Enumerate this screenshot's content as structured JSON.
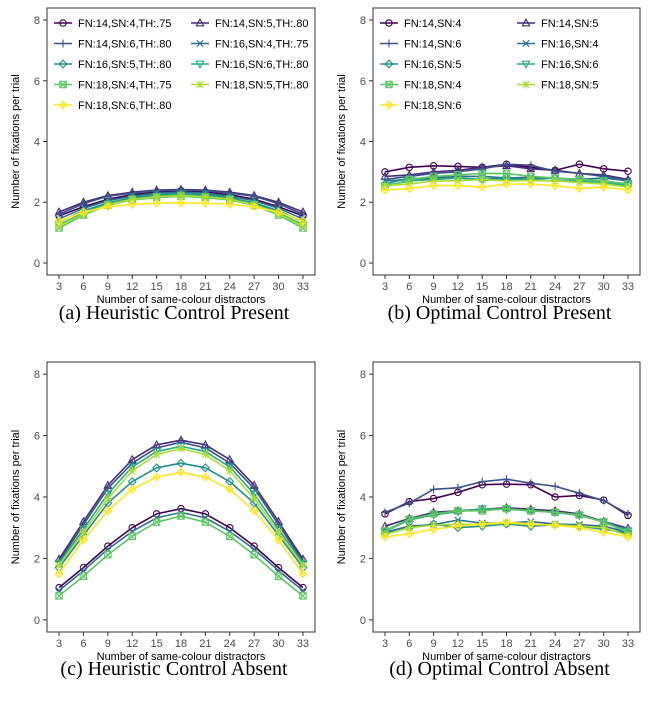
{
  "chart_data": [
    {
      "type": "line",
      "title": "(a) Heuristic Control Present",
      "xlabel": "Number of same-colour distractors",
      "ylabel": "Number of fixations per trial",
      "x": [
        3,
        6,
        9,
        12,
        15,
        18,
        21,
        24,
        27,
        30,
        33
      ],
      "xlim": [
        3,
        33
      ],
      "ylim": [
        0,
        8
      ],
      "yticks": [
        0,
        2,
        4,
        6,
        8
      ],
      "grid": false,
      "legend": "top-left",
      "series": [
        {
          "name": "FN:14,SN:4,TH:.75",
          "color": "#440154",
          "marker": "circle",
          "values": [
            1.55,
            1.85,
            2.1,
            2.25,
            2.33,
            2.38,
            2.33,
            2.25,
            2.1,
            1.85,
            1.55
          ]
        },
        {
          "name": "FN:14,SN:5,TH:.80",
          "color": "#472d7b",
          "marker": "triangle",
          "values": [
            1.68,
            2.0,
            2.22,
            2.33,
            2.4,
            2.42,
            2.4,
            2.33,
            2.22,
            2.0,
            1.68
          ]
        },
        {
          "name": "FN:14,SN:6,TH:.80",
          "color": "#3b528b",
          "marker": "plus",
          "values": [
            1.6,
            1.95,
            2.2,
            2.3,
            2.38,
            2.4,
            2.38,
            2.3,
            2.2,
            1.95,
            1.6
          ]
        },
        {
          "name": "FN:16,SN:4,TH:.75",
          "color": "#2c728e",
          "marker": "cross",
          "values": [
            1.45,
            1.8,
            2.05,
            2.2,
            2.3,
            2.33,
            2.3,
            2.2,
            2.05,
            1.8,
            1.45
          ]
        },
        {
          "name": "FN:16,SN:5,TH:.80",
          "color": "#21908d",
          "marker": "diamond",
          "values": [
            1.35,
            1.72,
            1.98,
            2.15,
            2.25,
            2.28,
            2.25,
            2.15,
            1.98,
            1.72,
            1.35
          ]
        },
        {
          "name": "FN:16,SN:6,TH:.80",
          "color": "#27ad81",
          "marker": "triangle-down",
          "values": [
            1.25,
            1.65,
            1.95,
            2.12,
            2.2,
            2.25,
            2.2,
            2.12,
            1.95,
            1.65,
            1.25
          ]
        },
        {
          "name": "FN:18,SN:4,TH:.75",
          "color": "#5dc863",
          "marker": "square-cross",
          "values": [
            1.15,
            1.58,
            1.9,
            2.08,
            2.15,
            2.2,
            2.15,
            2.08,
            1.9,
            1.58,
            1.15
          ]
        },
        {
          "name": "FN:18,SN:5,TH:.80",
          "color": "#aadc32",
          "marker": "star",
          "values": [
            1.22,
            1.62,
            1.92,
            2.1,
            2.18,
            2.22,
            2.18,
            2.1,
            1.92,
            1.62,
            1.22
          ]
        },
        {
          "name": "FN:18,SN:6,TH:.80",
          "color": "#fde725",
          "marker": "diamond-plus",
          "values": [
            1.38,
            1.68,
            1.85,
            1.93,
            1.97,
            1.98,
            1.97,
            1.93,
            1.85,
            1.68,
            1.38
          ]
        }
      ]
    },
    {
      "type": "line",
      "title": "(b) Optimal Control Present",
      "xlabel": "Number of same-colour distractors",
      "ylabel": "Number of fixations per trial",
      "x": [
        3,
        6,
        9,
        12,
        15,
        18,
        21,
        24,
        27,
        30,
        33
      ],
      "xlim": [
        3,
        33
      ],
      "ylim": [
        0,
        8
      ],
      "yticks": [
        0,
        2,
        4,
        6,
        8
      ],
      "grid": false,
      "legend": "top-left",
      "series": [
        {
          "name": "FN:14,SN:4",
          "color": "#440154",
          "marker": "circle",
          "values": [
            3.0,
            3.15,
            3.2,
            3.18,
            3.15,
            3.25,
            3.15,
            3.05,
            3.25,
            3.1,
            3.02
          ]
        },
        {
          "name": "FN:14,SN:5",
          "color": "#472d7b",
          "marker": "triangle",
          "values": [
            2.85,
            2.9,
            3.0,
            3.05,
            3.15,
            3.2,
            3.1,
            3.05,
            2.95,
            2.9,
            2.75
          ]
        },
        {
          "name": "FN:14,SN:6",
          "color": "#3b528b",
          "marker": "plus",
          "values": [
            2.75,
            2.85,
            2.95,
            3.0,
            3.1,
            3.25,
            3.22,
            3.02,
            2.95,
            2.85,
            2.72
          ]
        },
        {
          "name": "FN:16,SN:4",
          "color": "#2c728e",
          "marker": "cross",
          "values": [
            2.7,
            2.75,
            2.8,
            2.85,
            2.85,
            2.8,
            2.82,
            2.78,
            2.75,
            2.8,
            2.7
          ]
        },
        {
          "name": "FN:16,SN:5",
          "color": "#21908d",
          "marker": "diamond",
          "values": [
            2.6,
            2.8,
            2.75,
            2.8,
            2.75,
            2.8,
            2.75,
            2.8,
            2.75,
            2.7,
            2.6
          ]
        },
        {
          "name": "FN:16,SN:6",
          "color": "#27ad81",
          "marker": "triangle-down",
          "values": [
            2.55,
            2.7,
            2.75,
            2.8,
            2.72,
            2.75,
            2.72,
            2.7,
            2.7,
            2.65,
            2.55
          ]
        },
        {
          "name": "FN:18,SN:4",
          "color": "#5dc863",
          "marker": "square-cross",
          "values": [
            2.5,
            2.75,
            2.85,
            2.9,
            2.95,
            2.95,
            2.85,
            2.8,
            2.75,
            2.7,
            2.6
          ]
        },
        {
          "name": "FN:18,SN:5",
          "color": "#aadc32",
          "marker": "star",
          "values": [
            2.55,
            2.6,
            2.7,
            2.7,
            2.75,
            2.7,
            2.72,
            2.7,
            2.65,
            2.6,
            2.5
          ]
        },
        {
          "name": "FN:18,SN:6",
          "color": "#fde725",
          "marker": "diamond-plus",
          "values": [
            2.4,
            2.45,
            2.55,
            2.55,
            2.5,
            2.6,
            2.6,
            2.55,
            2.45,
            2.5,
            2.4
          ]
        }
      ]
    },
    {
      "type": "line",
      "title": "(c) Heuristic Control Absent",
      "xlabel": "Number of same-colour distractors",
      "ylabel": "Number of fixations per trial",
      "x": [
        3,
        6,
        9,
        12,
        15,
        18,
        21,
        24,
        27,
        30,
        33
      ],
      "xlim": [
        3,
        33
      ],
      "ylim": [
        0,
        8
      ],
      "yticks": [
        0,
        2,
        4,
        6,
        8
      ],
      "grid": false,
      "series": [
        {
          "name": "FN:14,SN:4,TH:.75",
          "color": "#440154",
          "marker": "circle",
          "values": [
            1.05,
            1.7,
            2.4,
            3.0,
            3.45,
            3.62,
            3.45,
            3.0,
            2.4,
            1.7,
            1.05
          ]
        },
        {
          "name": "FN:14,SN:5,TH:.80",
          "color": "#472d7b",
          "marker": "triangle",
          "values": [
            1.98,
            3.2,
            4.38,
            5.22,
            5.7,
            5.85,
            5.7,
            5.22,
            4.38,
            3.2,
            1.98
          ]
        },
        {
          "name": "FN:14,SN:6,TH:.80",
          "color": "#3b528b",
          "marker": "plus",
          "values": [
            1.9,
            3.1,
            4.28,
            5.1,
            5.6,
            5.78,
            5.6,
            5.1,
            4.28,
            3.1,
            1.9
          ]
        },
        {
          "name": "FN:16,SN:4,TH:.75",
          "color": "#2c728e",
          "marker": "cross",
          "values": [
            0.95,
            1.6,
            2.3,
            2.88,
            3.32,
            3.5,
            3.32,
            2.88,
            2.3,
            1.6,
            0.95
          ]
        },
        {
          "name": "FN:16,SN:5,TH:.80",
          "color": "#21908d",
          "marker": "diamond",
          "values": [
            1.7,
            2.75,
            3.8,
            4.5,
            4.95,
            5.1,
            4.95,
            4.5,
            3.8,
            2.75,
            1.7
          ]
        },
        {
          "name": "FN:16,SN:6,TH:.80",
          "color": "#27ad81",
          "marker": "triangle-down",
          "values": [
            1.85,
            2.95,
            4.1,
            4.98,
            5.48,
            5.65,
            5.48,
            4.98,
            4.1,
            2.95,
            1.85
          ]
        },
        {
          "name": "FN:18,SN:4,TH:.75",
          "color": "#5dc863",
          "marker": "square-cross",
          "values": [
            0.78,
            1.42,
            2.12,
            2.72,
            3.18,
            3.38,
            3.18,
            2.72,
            2.12,
            1.42,
            0.78
          ]
        },
        {
          "name": "FN:18,SN:5,TH:.80",
          "color": "#aadc32",
          "marker": "star",
          "values": [
            1.78,
            2.85,
            3.95,
            4.85,
            5.38,
            5.58,
            5.38,
            4.85,
            3.95,
            2.85,
            1.78
          ]
        },
        {
          "name": "FN:18,SN:6,TH:.80",
          "color": "#fde725",
          "marker": "diamond-plus",
          "values": [
            1.5,
            2.6,
            3.55,
            4.25,
            4.65,
            4.8,
            4.65,
            4.25,
            3.55,
            2.6,
            1.5
          ]
        }
      ]
    },
    {
      "type": "line",
      "title": "(d) Optimal Control Absent",
      "xlabel": "Number of same-colour distractors",
      "ylabel": "Number of fixations per trial",
      "x": [
        3,
        6,
        9,
        12,
        15,
        18,
        21,
        24,
        27,
        30,
        33
      ],
      "xlim": [
        3,
        33
      ],
      "ylim": [
        0,
        8
      ],
      "yticks": [
        0,
        2,
        4,
        6,
        8
      ],
      "grid": false,
      "series": [
        {
          "name": "FN:14,SN:4",
          "color": "#440154",
          "marker": "circle",
          "values": [
            3.45,
            3.85,
            3.95,
            4.15,
            4.4,
            4.42,
            4.4,
            4.0,
            4.05,
            3.9,
            3.4
          ]
        },
        {
          "name": "FN:14,SN:5",
          "color": "#472d7b",
          "marker": "triangle",
          "values": [
            3.05,
            3.3,
            3.5,
            3.55,
            3.6,
            3.65,
            3.6,
            3.55,
            3.45,
            3.2,
            2.98
          ]
        },
        {
          "name": "FN:14,SN:6",
          "color": "#3b528b",
          "marker": "plus",
          "values": [
            3.5,
            3.8,
            4.25,
            4.3,
            4.5,
            4.58,
            4.45,
            4.35,
            4.12,
            3.88,
            3.45
          ]
        },
        {
          "name": "FN:16,SN:4",
          "color": "#2c728e",
          "marker": "cross",
          "values": [
            2.85,
            3.05,
            3.1,
            3.25,
            3.15,
            3.15,
            3.2,
            3.12,
            3.1,
            3.05,
            2.85
          ]
        },
        {
          "name": "FN:16,SN:5",
          "color": "#21908d",
          "marker": "diamond",
          "values": [
            2.8,
            3.0,
            3.12,
            3.0,
            3.05,
            3.12,
            3.05,
            3.1,
            3.05,
            2.95,
            2.82
          ]
        },
        {
          "name": "FN:16,SN:6",
          "color": "#27ad81",
          "marker": "triangle-down",
          "values": [
            2.88,
            3.25,
            3.42,
            3.52,
            3.62,
            3.6,
            3.55,
            3.5,
            3.4,
            3.2,
            2.9
          ]
        },
        {
          "name": "FN:18,SN:4",
          "color": "#5dc863",
          "marker": "square-cross",
          "values": [
            2.9,
            3.28,
            3.45,
            3.55,
            3.55,
            3.62,
            3.55,
            3.5,
            3.42,
            3.18,
            2.85
          ]
        },
        {
          "name": "FN:18,SN:5",
          "color": "#aadc32",
          "marker": "star",
          "values": [
            2.78,
            3.0,
            3.08,
            3.12,
            3.1,
            3.15,
            3.1,
            3.1,
            3.05,
            3.0,
            2.75
          ]
        },
        {
          "name": "FN:18,SN:6",
          "color": "#fde725",
          "marker": "diamond-plus",
          "values": [
            2.7,
            2.8,
            2.95,
            3.05,
            3.12,
            3.18,
            3.12,
            3.08,
            3.0,
            2.85,
            2.7
          ]
        }
      ]
    }
  ]
}
